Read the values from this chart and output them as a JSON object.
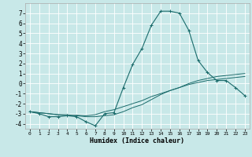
{
  "xlabel": "Humidex (Indice chaleur)",
  "background_color": "#c8e8e8",
  "grid_color": "#ffffff",
  "line_color": "#1a6b6b",
  "xlim": [
    -0.5,
    23.5
  ],
  "ylim": [
    -4.5,
    8.0
  ],
  "xticks": [
    0,
    1,
    2,
    3,
    4,
    5,
    6,
    7,
    8,
    9,
    10,
    11,
    12,
    13,
    14,
    15,
    16,
    17,
    18,
    19,
    20,
    21,
    22,
    23
  ],
  "yticks": [
    -4,
    -3,
    -2,
    -1,
    0,
    1,
    2,
    3,
    4,
    5,
    6,
    7
  ],
  "line1_x": [
    0,
    1,
    2,
    3,
    4,
    5,
    6,
    7,
    8,
    9,
    10,
    11,
    12,
    13,
    14,
    15,
    16,
    17,
    18,
    19,
    20,
    21,
    22,
    23
  ],
  "line1_y": [
    -2.8,
    -3.0,
    -3.3,
    -3.3,
    -3.2,
    -3.3,
    -3.8,
    -4.2,
    -3.0,
    -2.9,
    -0.4,
    1.9,
    3.5,
    5.8,
    7.2,
    7.2,
    7.0,
    5.3,
    2.3,
    1.1,
    0.3,
    0.3,
    -0.4,
    -1.2
  ],
  "line2_x": [
    0,
    1,
    2,
    3,
    4,
    5,
    6,
    7,
    8,
    9,
    10,
    11,
    12,
    13,
    14,
    15,
    16,
    17,
    18,
    19,
    20,
    21,
    22,
    23
  ],
  "line2_y": [
    -2.8,
    -2.9,
    -3.0,
    -3.1,
    -3.1,
    -3.2,
    -3.3,
    -3.3,
    -3.2,
    -3.1,
    -2.8,
    -2.4,
    -2.1,
    -1.6,
    -1.1,
    -0.7,
    -0.4,
    0.0,
    0.3,
    0.5,
    0.7,
    0.8,
    0.9,
    1.0
  ],
  "line3_x": [
    0,
    1,
    2,
    3,
    4,
    5,
    6,
    7,
    8,
    9,
    10,
    11,
    12,
    13,
    14,
    15,
    16,
    17,
    18,
    19,
    20,
    21,
    22,
    23
  ],
  "line3_y": [
    -2.8,
    -2.9,
    -3.0,
    -3.1,
    -3.2,
    -3.15,
    -3.2,
    -3.1,
    -2.8,
    -2.6,
    -2.3,
    -2.0,
    -1.7,
    -1.3,
    -1.0,
    -0.7,
    -0.4,
    -0.1,
    0.1,
    0.3,
    0.4,
    0.5,
    0.6,
    0.7
  ]
}
